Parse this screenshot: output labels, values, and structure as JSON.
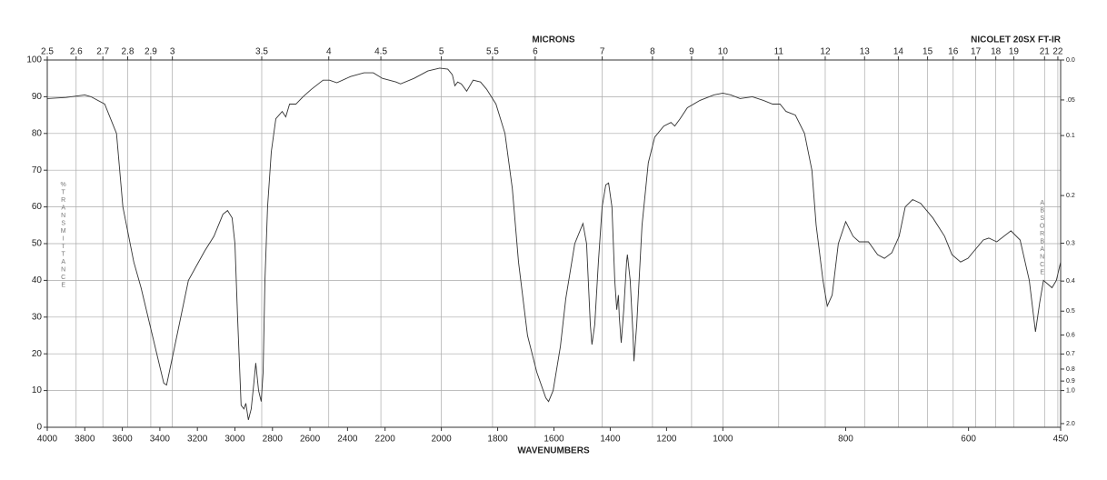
{
  "chart_data": {
    "type": "line",
    "top_axis_label": "MICRONS",
    "x_label": "WAVENUMBERS",
    "instrument": "NICOLET 20SX FT-IR",
    "y_label": "%TRANSMITTANCE",
    "y2_label": "ABSORBANCE",
    "xlim": [
      4000,
      450
    ],
    "xscale_breaks": [
      2200,
      1000
    ],
    "xticks": [
      4000,
      3800,
      3600,
      3400,
      3200,
      3000,
      2800,
      2600,
      2400,
      2200,
      2000,
      1800,
      1600,
      1400,
      1200,
      1000,
      800,
      600,
      450
    ],
    "micron_ticks": [
      2.5,
      2.6,
      2.7,
      2.8,
      2.9,
      3,
      3.5,
      4,
      4.5,
      5,
      5.5,
      6,
      7,
      8,
      9,
      10,
      11,
      12,
      13,
      14,
      15,
      16,
      17,
      18,
      19,
      21,
      22
    ],
    "ylim": [
      0,
      100
    ],
    "yticks": [
      0,
      10,
      20,
      30,
      40,
      50,
      60,
      70,
      80,
      90,
      100
    ],
    "y2ticks": [
      {
        "value": 0,
        "label": "0.0"
      },
      {
        "value": 0.05,
        "label": ".05"
      },
      0.1,
      0.2,
      0.3,
      0.4,
      0.5,
      0.6,
      0.7,
      0.8,
      0.9,
      {
        "value": 1,
        "label": "1.0"
      },
      {
        "value": 2,
        "label": "2.0"
      }
    ],
    "grid": true,
    "color": "#333333",
    "x": [
      4000,
      3900,
      3800,
      3767,
      3694,
      3631,
      3597,
      3539,
      3500,
      3379,
      3364,
      3321,
      3248,
      3161,
      3112,
      3064,
      3039,
      3015,
      3000,
      2986,
      2967,
      2952,
      2942,
      2928,
      2913,
      2899,
      2889,
      2874,
      2860,
      2850,
      2840,
      2826,
      2806,
      2782,
      2748,
      2729,
      2709,
      2675,
      2637,
      2593,
      2530,
      2496,
      2457,
      2384,
      2312,
      2263,
      2214,
      2161,
      2145,
      2097,
      2048,
      2006,
      1977,
      1961,
      1952,
      1942,
      1929,
      1910,
      1887,
      1861,
      1839,
      1806,
      1774,
      1748,
      1726,
      1694,
      1661,
      1629,
      1619,
      1603,
      1577,
      1558,
      1526,
      1497,
      1484,
      1471,
      1465,
      1455,
      1442,
      1429,
      1416,
      1406,
      1394,
      1384,
      1377,
      1371,
      1368,
      1361,
      1352,
      1342,
      1339,
      1329,
      1319,
      1316,
      1306,
      1287,
      1265,
      1242,
      1210,
      1184,
      1171,
      1152,
      1126,
      1081,
      1032,
      1000,
      987,
      972,
      952,
      934,
      919,
      907,
      897,
      882,
      867,
      855,
      848,
      837,
      830,
      822,
      812,
      800,
      788,
      778,
      763,
      748,
      737,
      725,
      713,
      703,
      691,
      678,
      658,
      639,
      627,
      613,
      601,
      591,
      576,
      567,
      554,
      531,
      516,
      501,
      491,
      484,
      478,
      464,
      457,
      450
    ],
    "values": [
      89.5,
      89.8,
      90.5,
      90,
      88,
      80,
      60,
      45,
      38,
      12,
      11.5,
      22,
      40,
      48,
      52,
      58,
      59,
      57,
      50,
      30,
      6,
      5,
      6.5,
      2,
      5,
      12,
      17.5,
      10,
      7,
      15,
      40,
      60,
      75,
      84,
      86,
      84.5,
      88,
      88,
      90,
      92,
      94.5,
      94.5,
      93.8,
      95.5,
      96.5,
      96.5,
      95,
      94,
      93.5,
      95,
      97,
      97.8,
      97.5,
      96,
      93,
      94,
      93.5,
      91.5,
      94.5,
      94,
      92,
      88,
      80,
      65,
      45,
      25,
      15,
      8,
      7,
      10,
      22,
      35,
      50,
      55.5,
      50,
      28,
      22.5,
      28,
      45,
      60,
      66,
      66.5,
      60,
      40,
      32,
      36,
      30,
      23,
      32,
      45,
      47,
      40,
      25,
      18,
      28,
      55,
      72,
      79,
      82,
      83,
      82,
      84,
      87,
      89,
      90.5,
      91,
      90.5,
      89.5,
      90,
      89,
      88,
      88,
      86,
      85,
      80,
      70,
      55,
      40,
      33,
      36,
      50,
      56,
      52,
      50.5,
      50.5,
      47,
      46,
      47.5,
      52,
      60,
      62,
      61,
      57,
      52,
      47,
      45,
      46,
      48,
      51,
      51.5,
      50.5,
      53.5,
      51,
      40,
      26,
      34,
      40,
      38,
      40,
      45
    ]
  }
}
